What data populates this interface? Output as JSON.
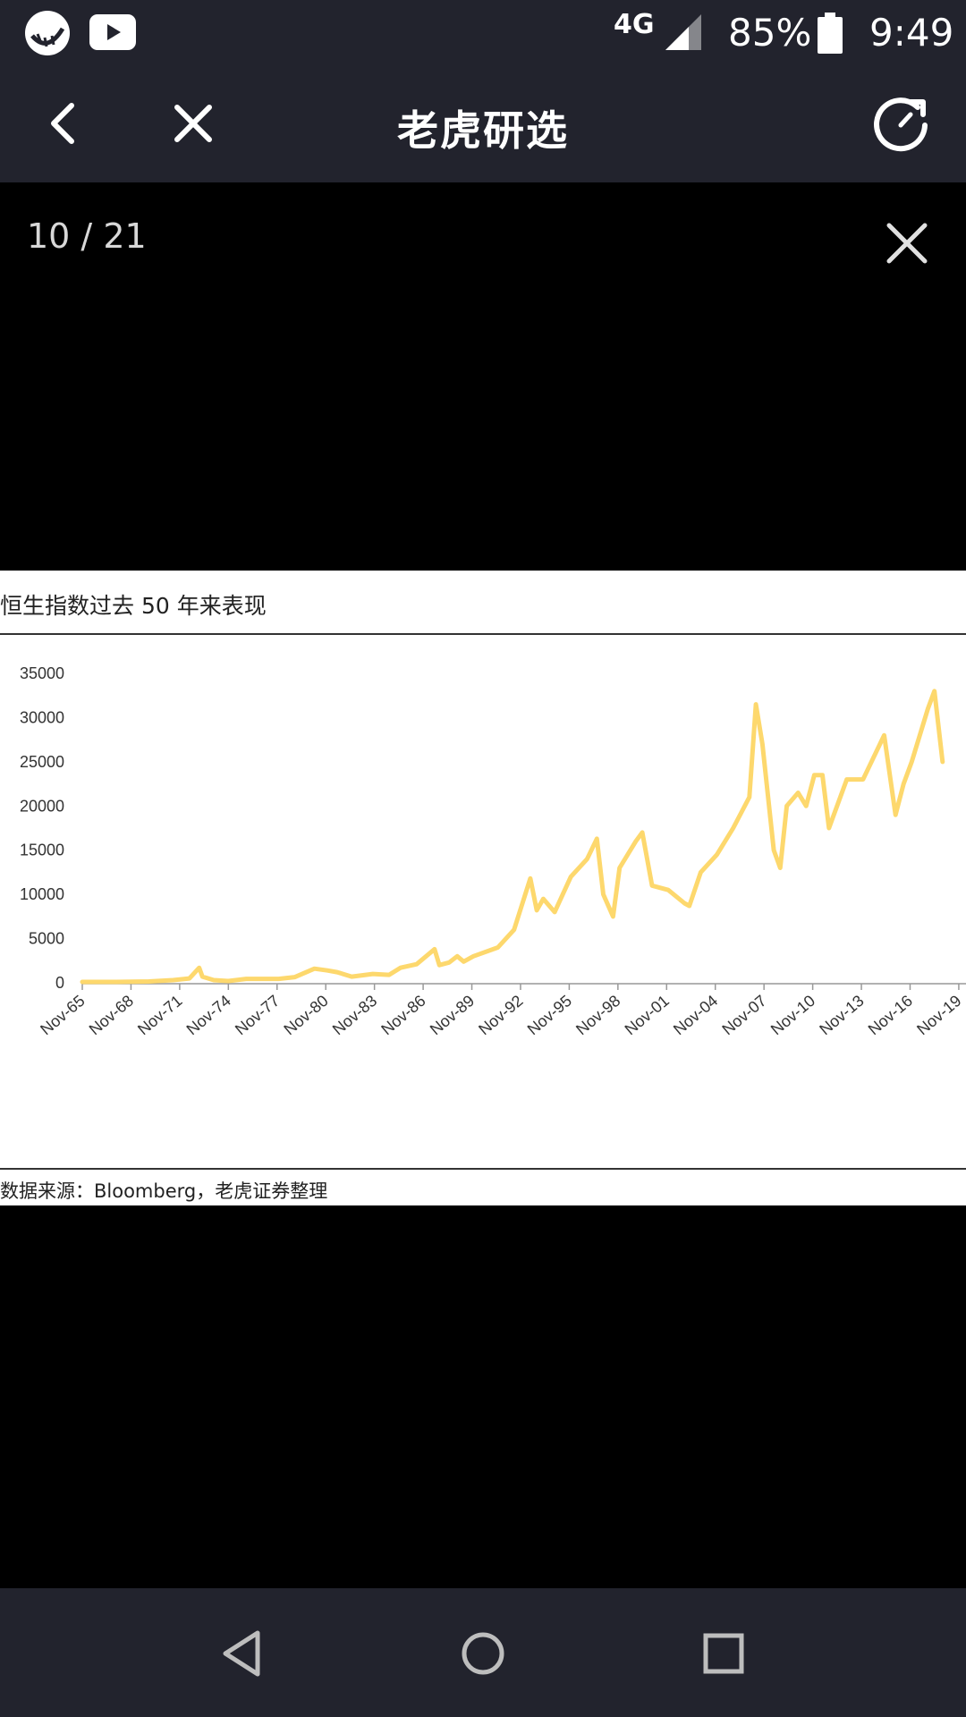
{
  "status_bar": {
    "network": "4G",
    "battery": "85%",
    "time": "9:49",
    "icons": [
      "app-logo-icon",
      "youtube-icon",
      "signal-icon",
      "battery-icon"
    ]
  },
  "header": {
    "title": "老虎研选",
    "icons": [
      "back-icon",
      "close-icon",
      "refresh-icon"
    ]
  },
  "viewer": {
    "counter": "10 / 21",
    "image": {
      "title": "恒生指数过去 50 年来表现",
      "source": "数据来源：Bloomberg，老虎证券整理"
    }
  },
  "colors": {
    "bar": "#22232d",
    "line": "#fdd86d"
  },
  "chart_data": {
    "type": "line",
    "title": "恒生指数过去 50 年来表现",
    "xlabel": "",
    "ylabel": "",
    "ylim": [
      0,
      35000
    ],
    "yticks": [
      "0",
      "5000",
      "10000",
      "15000",
      "20000",
      "25000",
      "30000",
      "35000"
    ],
    "xticks": [
      "Nov-65",
      "Nov-68",
      "Nov-71",
      "Nov-74",
      "Nov-77",
      "Nov-80",
      "Nov-83",
      "Nov-86",
      "Nov-89",
      "Nov-92",
      "Nov-95",
      "Nov-98",
      "Nov-01",
      "Nov-04",
      "Nov-07",
      "Nov-10",
      "Nov-13",
      "Nov-16",
      "Nov-19"
    ],
    "grid": false,
    "series": [
      {
        "x": [
          1965.9,
          1968,
          1970,
          1971.5,
          1972.5,
          1973.1,
          1973.3,
          1974,
          1974.9,
          1976,
          1978,
          1979,
          1980.2,
          1981,
          1981.6,
          1982.5,
          1983.8,
          1984.8,
          1985.5,
          1986.5,
          1987.6,
          1987.9,
          1988.5,
          1989,
          1989.4,
          1990,
          1991.5,
          1992.5,
          1993.5,
          1993.9,
          1994.3,
          1995,
          1996,
          1997,
          1997.6,
          1998,
          1998.6,
          1999,
          2000,
          2000.4,
          2001,
          2002,
          2003,
          2003.3,
          2004,
          2005,
          2006,
          2007,
          2007.4,
          2007.8,
          2008.5,
          2008.9,
          2009.3,
          2010,
          2010.5,
          2011,
          2011.5,
          2011.9,
          2013,
          2014,
          2015.3,
          2016,
          2016.5,
          2017,
          2018,
          2018.4,
          2018.9
        ],
        "y": [
          100,
          100,
          150,
          300,
          500,
          1700,
          700,
          300,
          200,
          450,
          450,
          650,
          1600,
          1400,
          1200,
          700,
          1000,
          900,
          1700,
          2100,
          3800,
          2000,
          2300,
          3000,
          2400,
          3000,
          4000,
          6000,
          11800,
          8200,
          9500,
          8000,
          12000,
          14000,
          16300,
          10000,
          7500,
          13000,
          16000,
          17000,
          11000,
          10500,
          9000,
          8700,
          12500,
          14500,
          17500,
          21000,
          31500,
          27000,
          15000,
          13000,
          20000,
          21500,
          20000,
          23500,
          23500,
          17500,
          23000,
          23000,
          28000,
          19000,
          22500,
          25000,
          31000,
          33000,
          25000
        ]
      }
    ]
  }
}
